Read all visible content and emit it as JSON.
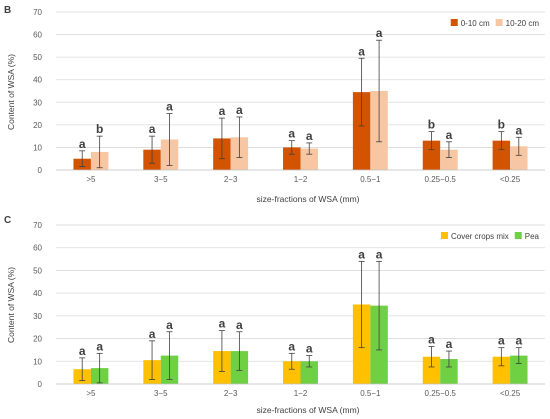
{
  "chart_data": [
    {
      "type": "bar",
      "panel_label": "B",
      "categories": [
        ">5",
        "3−5",
        "2−3",
        "1−2",
        "0.5−1",
        "0.25−0.5",
        "<0.25"
      ],
      "xlabel": "size-fractions of WSA (mm)",
      "ylabel": "Content of WSA (%)",
      "ylim": [
        0,
        70
      ],
      "yticks": [
        0,
        10,
        20,
        30,
        40,
        50,
        60,
        70
      ],
      "grid": true,
      "legend_position": "top-right",
      "series": [
        {
          "name": "0-10 cm",
          "color": "#D35400",
          "values": [
            5,
            9,
            14,
            10,
            34.5,
            13,
            13
          ],
          "errors": [
            3.5,
            6,
            9,
            3,
            15,
            4,
            4
          ],
          "labels": [
            "a",
            "a",
            "a",
            "a",
            "a",
            "b",
            "b"
          ]
        },
        {
          "name": "10-20 cm",
          "color": "#F7C6A3",
          "values": [
            8,
            13.5,
            14.5,
            9.5,
            35,
            9,
            10.5
          ],
          "errors": [
            7,
            11.5,
            9,
            2.5,
            22.5,
            3.5,
            4
          ],
          "labels": [
            "b",
            "a",
            "a",
            "a",
            "a",
            "a",
            "a"
          ]
        }
      ]
    },
    {
      "type": "bar",
      "panel_label": "C",
      "categories": [
        ">5",
        "3−5",
        "2−3",
        "1−2",
        "0.5−1",
        "0.25−0.5",
        "<0.25"
      ],
      "xlabel": "size-fractions of WSA (mm)",
      "ylabel": "Content of WSA (%)",
      "ylim": [
        0,
        70
      ],
      "yticks": [
        0,
        10,
        20,
        30,
        40,
        50,
        60,
        70
      ],
      "grid": true,
      "legend_position": "top-right",
      "series": [
        {
          "name": "Cover crops mix",
          "color": "#FFC000",
          "values": [
            6.5,
            10.5,
            14.5,
            10,
            35,
            12,
            12
          ],
          "errors": [
            5,
            8.5,
            9,
            3.5,
            19,
            4.5,
            4
          ],
          "labels": [
            "a",
            "a",
            "a",
            "a",
            "a",
            "a",
            "a"
          ]
        },
        {
          "name": "Pea",
          "color": "#70D044",
          "values": [
            7,
            12.5,
            14.5,
            10,
            34.5,
            11,
            12.5
          ],
          "errors": [
            6.5,
            10.5,
            8.5,
            2.5,
            19.5,
            3.5,
            3.5
          ],
          "labels": [
            "a",
            "a",
            "a",
            "a",
            "a",
            "a",
            "a"
          ]
        }
      ]
    }
  ]
}
